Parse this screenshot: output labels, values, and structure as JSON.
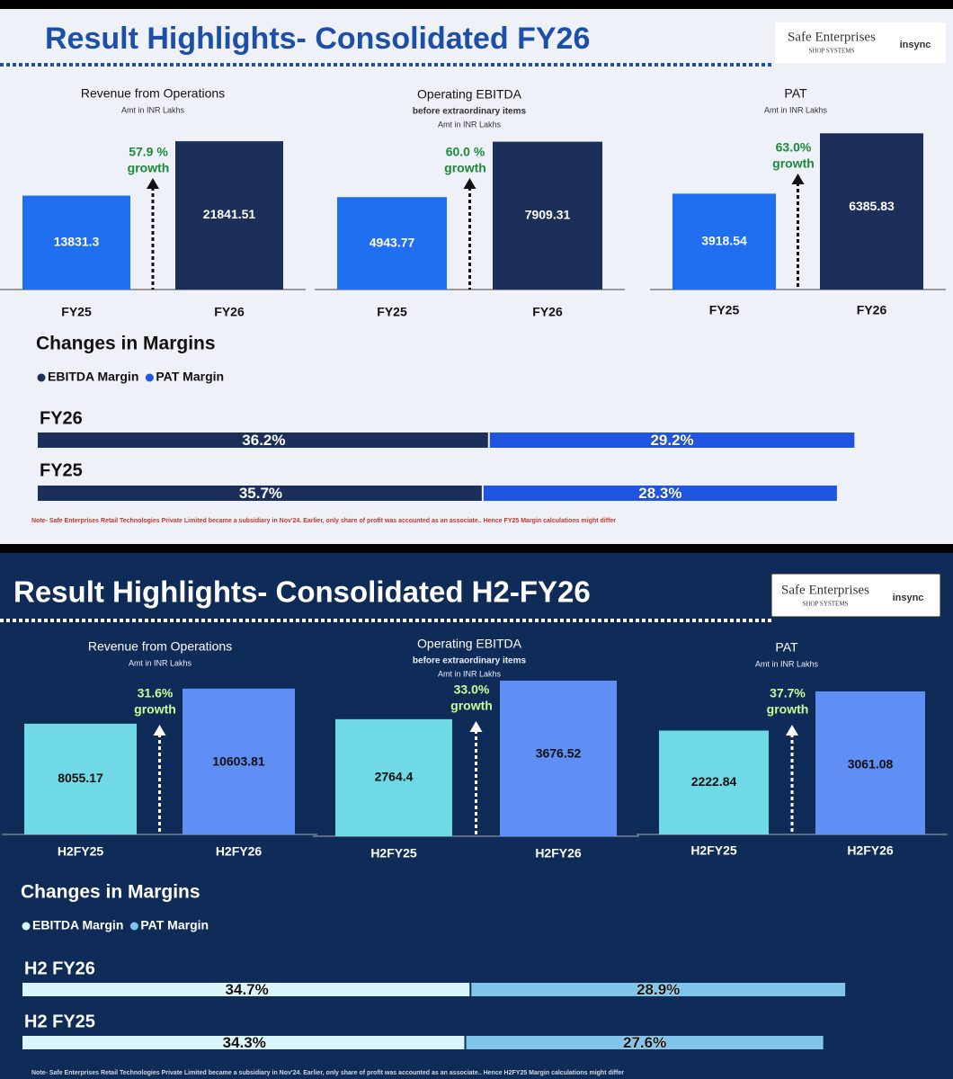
{
  "slides": [
    {
      "title": "Result Highlights- Consolidated FY26",
      "logo": [
        "Safe Enterprises",
        "SHOP SYSTEMS",
        "insync"
      ],
      "note": "Note- Safe Enterprises Retail Technologies Private Limited became a subsidiary in Nov'24.  Earlier, only share of profit was accounted as an associate.. Hence FY25 Margin calculations might differ"
    },
    {
      "title": "Result Highlights- Consolidated H2-FY26",
      "logo": [
        "Safe Enterprises",
        "SHOP SYSTEMS",
        "insync"
      ],
      "note": "Note- Safe Enterprises Retail Technologies Private Limited became a subsidiary in Nov'24.  Earlier, only share of profit was accounted as an associate.. Hence H2FY25 Margin calculations might differ"
    }
  ],
  "chart_data": [
    {
      "type": "bar",
      "title": "Revenue from Operations",
      "subtitles": [
        "Amt in INR Lakhs"
      ],
      "categories": [
        "FY25",
        "FY26"
      ],
      "values": [
        13831.3,
        21841.51
      ],
      "colors": [
        "#1f6ff0",
        "#1c2f5a"
      ],
      "ylim": [
        0,
        24500
      ],
      "growth_labels": [
        "57.9 %",
        "growth"
      ]
    },
    {
      "type": "bar",
      "title": "Operating EBITDA",
      "subtitles": [
        "before extraordinary items",
        "Amt in INR Lakhs"
      ],
      "categories": [
        "FY25",
        "FY26"
      ],
      "values": [
        4943.77,
        7909.31
      ],
      "colors": [
        "#1f6ff0",
        "#1c2f5a"
      ],
      "ylim": [
        0,
        8900
      ],
      "growth_labels": [
        "60.0 %",
        "growth"
      ]
    },
    {
      "type": "bar",
      "title": "PAT",
      "subtitles": [
        "Amt in INR Lakhs"
      ],
      "categories": [
        "FY25",
        "FY26"
      ],
      "values": [
        3918.54,
        6385.83
      ],
      "colors": [
        "#1f6ff0",
        "#1c2f5a"
      ],
      "ylim": [
        0,
        6800
      ],
      "growth_labels": [
        "63.0%",
        "growth"
      ]
    },
    {
      "type": "hbar",
      "title": "Changes in Margins",
      "categories": [
        "FY26",
        "FY25"
      ],
      "xlim": [
        0,
        72
      ],
      "series": [
        {
          "name": "EBITDA Margin",
          "color": "#1c2f5a",
          "values": [
            36.2,
            35.7
          ],
          "value_labels": [
            "36.2%",
            "35.7%"
          ]
        },
        {
          "name": "PAT Margin",
          "color": "#1f55e0",
          "values": [
            29.2,
            28.3
          ],
          "value_labels": [
            "29.2%",
            "28.3%"
          ]
        }
      ]
    },
    {
      "type": "bar",
      "title": "Revenue from Operations",
      "subtitles": [
        "Amt in INR Lakhs"
      ],
      "categories": [
        "H2FY25",
        "H2FY26"
      ],
      "values": [
        8055.17,
        10603.81
      ],
      "colors": [
        "#6fd9e6",
        "#5f8ff5"
      ],
      "ylim": [
        0,
        12100
      ],
      "growth_labels": [
        "31.6%",
        "growth"
      ]
    },
    {
      "type": "bar",
      "title": "Operating EBITDA",
      "subtitles": [
        "before extraordinary items",
        "Amt in INR Lakhs"
      ],
      "categories": [
        "H2FY25",
        "H2FY26"
      ],
      "values": [
        2764.4,
        3676.52
      ],
      "colors": [
        "#6fd9e6",
        "#5f8ff5"
      ],
      "ylim": [
        0,
        3930
      ],
      "growth_labels": [
        "33.0%",
        "growth"
      ]
    },
    {
      "type": "bar",
      "title": "PAT",
      "subtitles": [
        "Amt in INR Lakhs"
      ],
      "categories": [
        "H2FY25",
        "H2FY26"
      ],
      "values": [
        2222.84,
        3061.08
      ],
      "colors": [
        "#6fd9e6",
        "#5f8ff5"
      ],
      "ylim": [
        0,
        3560
      ],
      "growth_labels": [
        "37.7%",
        "growth"
      ]
    },
    {
      "type": "hbar",
      "title": "Changes in Margins",
      "categories": [
        "H2 FY26",
        "H2 FY25"
      ],
      "xlim": [
        0,
        69.5
      ],
      "series": [
        {
          "name": "EBITDA Margin",
          "color": "#d9f6fb",
          "values": [
            34.7,
            34.3
          ],
          "value_labels": [
            "34.7%",
            "34.3%"
          ]
        },
        {
          "name": "PAT Margin",
          "color": "#7fc6ea",
          "values": [
            28.9,
            27.6
          ],
          "value_labels": [
            "28.9%",
            "27.6%"
          ]
        }
      ]
    }
  ]
}
